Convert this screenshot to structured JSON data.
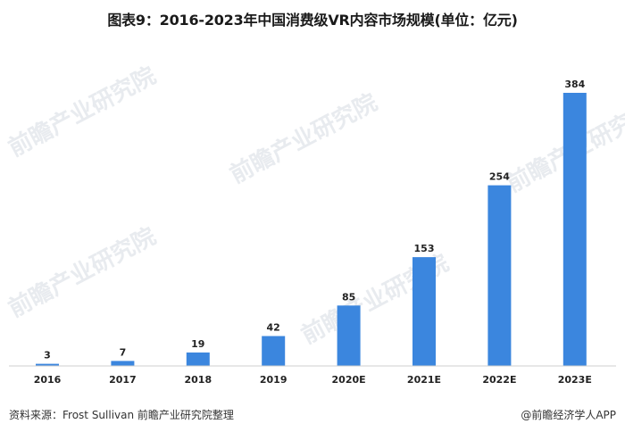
{
  "title": "图表9：2016-2023年中国消费级VR内容市场规模(单位：亿元)",
  "chart_data": {
    "type": "bar",
    "title": "图表9：2016-2023年中国消费级VR内容市场规模(单位：亿元)",
    "categories": [
      "2016",
      "2017",
      "2018",
      "2019",
      "2020E",
      "2021E",
      "2022E",
      "2023E"
    ],
    "values": [
      3,
      7,
      19,
      42,
      85,
      153,
      254,
      384
    ],
    "xlabel": "",
    "ylabel": "",
    "ylim": [
      0,
      384
    ],
    "grid": false,
    "legend": "none",
    "bar_color": "#3b86de"
  },
  "watermark": {
    "text": "前瞻产业研究院"
  },
  "footer": {
    "source": "资料来源：Frost Sullivan 前瞻产业研究院整理",
    "brand": "@前瞻经济学人APP"
  }
}
